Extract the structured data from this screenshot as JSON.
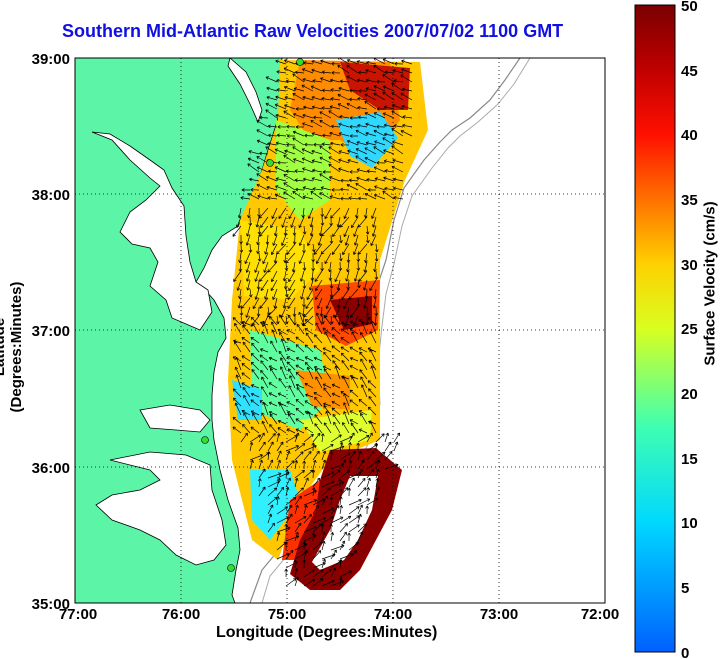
{
  "title": "Southern Mid-Atlantic Raw Velocities 2007/07/02 1100 GMT",
  "xlabel": "Longitude (Degrees:Minutes)",
  "ylabel": "Latitude (Degrees:Minutes)",
  "colorbar_label": "Surface Velocity (cm/s)",
  "chart_data": {
    "type": "heatmap",
    "x_ticks": [
      "77:00",
      "76:00",
      "75:00",
      "74:00",
      "73:00",
      "72:00"
    ],
    "y_ticks": [
      "39:00",
      "38:00",
      "37:00",
      "36:00",
      "35:00"
    ],
    "x_range": [
      -77,
      -72
    ],
    "y_range": [
      35,
      39
    ],
    "colorbar_ticks": [
      "0",
      "5",
      "10",
      "15",
      "20",
      "25",
      "30",
      "35",
      "40",
      "45",
      "50"
    ],
    "colorbar_range": [
      0,
      50
    ],
    "grid": true,
    "colors": {
      "land": "#5cf5a8",
      "coast": "#000000",
      "title": "#1010e0",
      "stations": "#33dd33"
    }
  }
}
